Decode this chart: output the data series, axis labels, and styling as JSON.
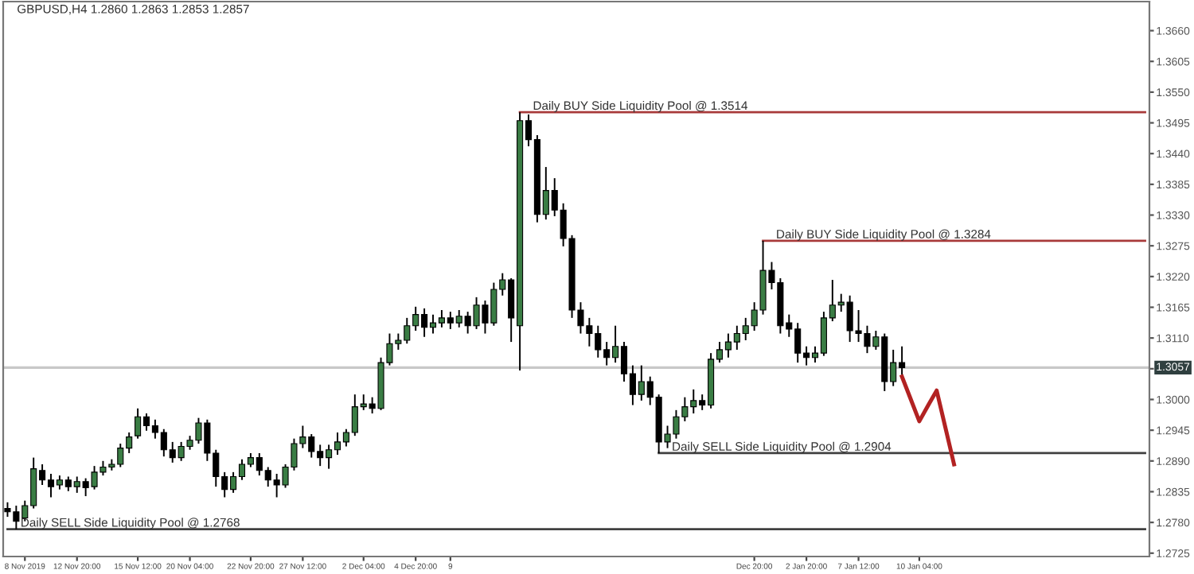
{
  "chart_data": {
    "type": "candlestick",
    "title": "GBPUSD,H4 1.2860 1.2863 1.2853 1.2857",
    "categories": [
      null,
      null,
      "8 Nov 2019",
      null,
      null,
      null,
      null,
      null,
      "12 Nov 20:00",
      null,
      null,
      null,
      null,
      null,
      null,
      "15 Nov 12:00",
      null,
      null,
      null,
      null,
      null,
      "20 Nov 04:00",
      null,
      null,
      null,
      null,
      null,
      null,
      "22 Nov 20:00",
      null,
      null,
      null,
      null,
      null,
      "27 Nov 12:00",
      null,
      null,
      null,
      null,
      null,
      null,
      "2 Dec 04:00",
      null,
      null,
      null,
      null,
      null,
      "4 Dec 20:00",
      null,
      null,
      null,
      "9",
      null,
      null,
      null,
      null,
      null,
      null,
      null,
      null,
      null,
      null,
      null,
      null,
      null,
      null,
      null,
      null,
      null,
      null,
      null,
      null,
      null,
      null,
      null,
      null,
      null,
      null,
      null,
      null,
      null,
      null,
      null,
      null,
      null,
      null,
      "Dec 20:00",
      null,
      null,
      null,
      null,
      null,
      "2 Jan 20:00",
      null,
      null,
      null,
      null,
      null,
      "7 Jan 12:00",
      null,
      null,
      null,
      null,
      null,
      null,
      "10 Jan 04:00",
      null,
      null,
      null,
      null,
      null,
      null,
      null,
      null,
      null,
      null,
      null,
      null,
      null,
      null,
      null,
      null,
      null,
      null,
      null,
      null,
      null,
      null,
      null,
      null,
      null,
      null
    ],
    "ohlc": [
      [
        1.2805,
        1.2816,
        1.279,
        1.2799
      ],
      [
        1.2799,
        1.281,
        1.2768,
        1.2782
      ],
      [
        1.2788,
        1.2819,
        1.2782,
        1.281
      ],
      [
        1.281,
        1.2896,
        1.2805,
        1.2876
      ],
      [
        1.2873,
        1.2884,
        1.2847,
        1.2856
      ],
      [
        1.2856,
        1.2867,
        1.2825,
        1.2844
      ],
      [
        1.2847,
        1.2864,
        1.2839,
        1.2856
      ],
      [
        1.2856,
        1.2862,
        1.2836,
        1.2844
      ],
      [
        1.2844,
        1.2862,
        1.2833,
        1.2853
      ],
      [
        1.2853,
        1.2859,
        1.2827,
        1.2842
      ],
      [
        1.2844,
        1.2881,
        1.2839,
        1.287
      ],
      [
        1.287,
        1.289,
        1.2864,
        1.2879
      ],
      [
        1.2879,
        1.2893,
        1.2873,
        1.2884
      ],
      [
        1.2884,
        1.2921,
        1.2879,
        1.2913
      ],
      [
        1.2913,
        1.2941,
        1.2904,
        1.2933
      ],
      [
        1.2935,
        1.2984,
        1.293,
        1.2969
      ],
      [
        1.2969,
        1.2975,
        1.2944,
        1.2953
      ],
      [
        1.2953,
        1.2964,
        1.293,
        1.2941
      ],
      [
        1.2941,
        1.2947,
        1.2898,
        1.291
      ],
      [
        1.291,
        1.2924,
        1.2887,
        1.2896
      ],
      [
        1.2896,
        1.2924,
        1.289,
        1.2916
      ],
      [
        1.2916,
        1.2935,
        1.291,
        1.2927
      ],
      [
        1.2927,
        1.2967,
        1.2921,
        1.2958
      ],
      [
        1.2958,
        1.2964,
        1.289,
        1.2904
      ],
      [
        1.2904,
        1.291,
        1.2844,
        1.2862
      ],
      [
        1.2862,
        1.287,
        1.2825,
        1.2839
      ],
      [
        1.2839,
        1.287,
        1.2833,
        1.2862
      ],
      [
        1.2862,
        1.2893,
        1.2856,
        1.2884
      ],
      [
        1.2884,
        1.2904,
        1.2879,
        1.2896
      ],
      [
        1.2896,
        1.2904,
        1.2864,
        1.2873
      ],
      [
        1.2873,
        1.2879,
        1.2844,
        1.2856
      ],
      [
        1.2856,
        1.2867,
        1.2825,
        1.2847
      ],
      [
        1.2847,
        1.2884,
        1.2842,
        1.2879
      ],
      [
        1.2879,
        1.293,
        1.2873,
        1.2921
      ],
      [
        1.2921,
        1.2953,
        1.2913,
        1.2933
      ],
      [
        1.2933,
        1.2938,
        1.2896,
        1.2907
      ],
      [
        1.2907,
        1.2919,
        1.2881,
        1.2896
      ],
      [
        1.2896,
        1.2919,
        1.2876,
        1.291
      ],
      [
        1.291,
        1.2941,
        1.2901,
        1.2924
      ],
      [
        1.2924,
        1.2947,
        1.2916,
        1.2941
      ],
      [
        1.2941,
        1.3009,
        1.2935,
        1.2987
      ],
      [
        1.2987,
        1.3009,
        1.2981,
        1.2992
      ],
      [
        1.2992,
        1.3004,
        1.2975,
        1.2984
      ],
      [
        1.2984,
        1.3075,
        1.2981,
        1.3066
      ],
      [
        1.3066,
        1.3118,
        1.3061,
        1.31
      ],
      [
        1.31,
        1.3118,
        1.3089,
        1.3106
      ],
      [
        1.3106,
        1.3146,
        1.31,
        1.3132
      ],
      [
        1.3132,
        1.3166,
        1.3123,
        1.3152
      ],
      [
        1.3152,
        1.3163,
        1.3112,
        1.3129
      ],
      [
        1.3129,
        1.3152,
        1.3118,
        1.3137
      ],
      [
        1.3137,
        1.316,
        1.3129,
        1.3146
      ],
      [
        1.3146,
        1.3157,
        1.3126,
        1.3137
      ],
      [
        1.3137,
        1.316,
        1.3129,
        1.3149
      ],
      [
        1.3149,
        1.3157,
        1.3118,
        1.3132
      ],
      [
        1.3132,
        1.3183,
        1.3126,
        1.3169
      ],
      [
        1.3169,
        1.3177,
        1.3118,
        1.3137
      ],
      [
        1.3137,
        1.3209,
        1.3132,
        1.3197
      ],
      [
        1.3197,
        1.3226,
        1.3186,
        1.3214
      ],
      [
        1.3214,
        1.3217,
        1.3103,
        1.3146
      ],
      [
        1.3132,
        1.3514,
        1.3052,
        1.3499
      ],
      [
        1.3499,
        1.351,
        1.3453,
        1.3465
      ],
      [
        1.3465,
        1.3473,
        1.3317,
        1.3331
      ],
      [
        1.3331,
        1.3416,
        1.3322,
        1.3374
      ],
      [
        1.3374,
        1.3396,
        1.3328,
        1.3339
      ],
      [
        1.3339,
        1.3351,
        1.3274,
        1.3288
      ],
      [
        1.3288,
        1.3294,
        1.3146,
        1.316
      ],
      [
        1.316,
        1.3174,
        1.3118,
        1.3132
      ],
      [
        1.3132,
        1.3146,
        1.3095,
        1.3118
      ],
      [
        1.3118,
        1.3132,
        1.3075,
        1.3089
      ],
      [
        1.3089,
        1.3103,
        1.3061,
        1.3075
      ],
      [
        1.3075,
        1.3132,
        1.3066,
        1.3095
      ],
      [
        1.3095,
        1.3103,
        1.3032,
        1.3046
      ],
      [
        1.3046,
        1.3061,
        1.299,
        1.3009
      ],
      [
        1.3009,
        1.3061,
        1.2998,
        1.3032
      ],
      [
        1.3032,
        1.3041,
        1.299,
        1.3004
      ],
      [
        1.3004,
        1.3009,
        1.2904,
        1.2924
      ],
      [
        1.2924,
        1.2953,
        1.2913,
        1.2938
      ],
      [
        1.2938,
        1.2981,
        1.293,
        1.2969
      ],
      [
        1.2969,
        1.3004,
        1.2961,
        1.2987
      ],
      [
        1.2987,
        1.3018,
        1.2975,
        1.2998
      ],
      [
        1.2998,
        1.3009,
        1.2981,
        1.299
      ],
      [
        1.299,
        1.3083,
        1.2984,
        1.3072
      ],
      [
        1.3072,
        1.3103,
        1.3066,
        1.3089
      ],
      [
        1.3089,
        1.3118,
        1.3075,
        1.3103
      ],
      [
        1.3103,
        1.3132,
        1.3089,
        1.3118
      ],
      [
        1.3118,
        1.3146,
        1.3106,
        1.3132
      ],
      [
        1.3132,
        1.3174,
        1.3123,
        1.316
      ],
      [
        1.316,
        1.3284,
        1.3152,
        1.3231
      ],
      [
        1.3231,
        1.3246,
        1.3197,
        1.3209
      ],
      [
        1.3209,
        1.3217,
        1.3118,
        1.3132
      ],
      [
        1.3137,
        1.3152,
        1.3112,
        1.3126
      ],
      [
        1.3126,
        1.3137,
        1.3066,
        1.3083
      ],
      [
        1.3083,
        1.3095,
        1.3061,
        1.3075
      ],
      [
        1.3075,
        1.3095,
        1.3066,
        1.3083
      ],
      [
        1.3083,
        1.3157,
        1.3078,
        1.3146
      ],
      [
        1.3146,
        1.3214,
        1.314,
        1.3169
      ],
      [
        1.3169,
        1.3189,
        1.3157,
        1.3174
      ],
      [
        1.3174,
        1.3186,
        1.3103,
        1.3123
      ],
      [
        1.3123,
        1.316,
        1.3103,
        1.3118
      ],
      [
        1.3118,
        1.3132,
        1.3083,
        1.3095
      ],
      [
        1.3095,
        1.3123,
        1.3089,
        1.3112
      ],
      [
        1.3112,
        1.3118,
        1.3015,
        1.3032
      ],
      [
        1.3032,
        1.3089,
        1.3024,
        1.3066
      ],
      [
        1.3066,
        1.3095,
        1.3044,
        1.3057
      ],
      null,
      null,
      null,
      null,
      null,
      null,
      null,
      null,
      null,
      null,
      null,
      null,
      null,
      null,
      null,
      null,
      null,
      null,
      null,
      null,
      null,
      null,
      null,
      null,
      null,
      null,
      null,
      null
    ],
    "colors": [
      "#000000",
      "#000000",
      "#3a7d44",
      "#3a7d44",
      "#000000",
      "#000000",
      "#3a7d44",
      "#000000",
      "#3a7d44",
      "#000000",
      "#3a7d44",
      "#3a7d44",
      "#3a7d44",
      "#3a7d44",
      "#3a7d44",
      "#3a7d44",
      "#000000",
      "#000000",
      "#000000",
      "#000000",
      "#3a7d44",
      "#3a7d44",
      "#3a7d44",
      "#000000",
      "#000000",
      "#000000",
      "#3a7d44",
      "#3a7d44",
      "#3a7d44",
      "#000000",
      "#000000",
      "#000000",
      "#3a7d44",
      "#3a7d44",
      "#3a7d44",
      "#000000",
      "#000000",
      "#3a7d44",
      "#3a7d44",
      "#3a7d44",
      "#3a7d44",
      "#3a7d44",
      "#000000",
      "#3a7d44",
      "#3a7d44",
      "#3a7d44",
      "#3a7d44",
      "#3a7d44",
      "#000000",
      "#3a7d44",
      "#3a7d44",
      "#000000",
      "#3a7d44",
      "#000000",
      "#3a7d44",
      "#000000",
      "#3a7d44",
      "#3a7d44",
      "#000000",
      "#3a7d44",
      "#000000",
      "#000000",
      "#3a7d44",
      "#000000",
      "#000000",
      "#000000",
      "#000000",
      "#000000",
      "#000000",
      "#000000",
      "#3a7d44",
      "#000000",
      "#000000",
      "#3a7d44",
      "#000000",
      "#000000",
      "#3a7d44",
      "#3a7d44",
      "#3a7d44",
      "#3a7d44",
      "#000000",
      "#3a7d44",
      "#3a7d44",
      "#3a7d44",
      "#3a7d44",
      "#3a7d44",
      "#3a7d44",
      "#3a7d44",
      "#000000",
      "#000000",
      "#000000",
      "#000000",
      "#000000",
      "#3a7d44",
      "#3a7d44",
      "#3a7d44",
      "#3a7d44",
      "#000000",
      "#000000",
      "#000000",
      "#3a7d44",
      "#000000",
      "#3a7d44",
      "#000000",
      null,
      null,
      null,
      null,
      null,
      null,
      null,
      null,
      null,
      null,
      null,
      null,
      null,
      null,
      null,
      null,
      null,
      null,
      null,
      null,
      null,
      null,
      null,
      null,
      null,
      null,
      null,
      null
    ],
    "series": [
      {
        "type": "line",
        "name": "Daily BUY Side Liquidity Pool @ 1.3514",
        "color": "#a83a3a",
        "values": [
          null,
          null,
          null,
          null,
          null,
          null,
          null,
          null,
          null,
          null,
          null,
          null,
          null,
          null,
          null,
          null,
          null,
          null,
          null,
          null,
          null,
          null,
          null,
          null,
          null,
          null,
          null,
          null,
          null,
          null,
          null,
          null,
          null,
          null,
          null,
          null,
          null,
          null,
          null,
          null,
          null,
          null,
          null,
          null,
          null,
          null,
          null,
          null,
          null,
          null,
          null,
          null,
          null,
          null,
          null,
          null,
          null,
          null,
          null,
          1.3514,
          1.3514,
          1.3514,
          1.3514,
          1.3514,
          1.3514,
          1.3514,
          1.3514,
          1.3514,
          1.3514,
          1.3514,
          1.3514,
          1.3514,
          1.3514,
          1.3514,
          1.3514,
          1.3514,
          1.3514,
          1.3514,
          1.3514,
          1.3514,
          1.3514,
          1.3514,
          1.3514,
          1.3514,
          1.3514,
          1.3514,
          1.3514,
          1.3514,
          1.3514,
          1.3514,
          1.3514,
          1.3514,
          1.3514,
          1.3514,
          1.3514,
          1.3514,
          1.3514,
          1.3514,
          1.3514,
          1.3514,
          1.3514,
          1.3514,
          1.3514,
          1.3514,
          1.3514,
          1.3514,
          1.3514,
          1.3514,
          1.3514,
          1.3514,
          1.3514,
          1.3514,
          1.3514,
          1.3514,
          1.3514,
          1.3514,
          1.3514,
          1.3514,
          1.3514,
          1.3514,
          1.3514,
          1.3514,
          1.3514,
          1.3514,
          1.3514,
          1.3514,
          1.3514,
          1.3514,
          1.3514,
          1.3514,
          1.3514,
          1.3514
        ]
      },
      {
        "type": "line",
        "name": "Daily BUY Side Liquidity Pool @ 1.3284",
        "color": "#a83a3a",
        "values": [
          null,
          null,
          null,
          null,
          null,
          null,
          null,
          null,
          null,
          null,
          null,
          null,
          null,
          null,
          null,
          null,
          null,
          null,
          null,
          null,
          null,
          null,
          null,
          null,
          null,
          null,
          null,
          null,
          null,
          null,
          null,
          null,
          null,
          null,
          null,
          null,
          null,
          null,
          null,
          null,
          null,
          null,
          null,
          null,
          null,
          null,
          null,
          null,
          null,
          null,
          null,
          null,
          null,
          null,
          null,
          null,
          null,
          null,
          null,
          null,
          null,
          null,
          null,
          null,
          null,
          null,
          null,
          null,
          null,
          null,
          null,
          null,
          null,
          null,
          null,
          null,
          null,
          null,
          null,
          null,
          null,
          null,
          null,
          null,
          null,
          null,
          null,
          1.3284,
          1.3284,
          1.3284,
          1.3284,
          1.3284,
          1.3284,
          1.3284,
          1.3284,
          1.3284,
          1.3284,
          1.3284,
          1.3284,
          1.3284,
          1.3284,
          1.3284,
          1.3284,
          1.3284,
          1.3284,
          1.3284,
          1.3284,
          1.3284,
          1.3284,
          1.3284,
          1.3284,
          1.3284,
          1.3284,
          1.3284,
          1.3284,
          1.3284,
          1.3284,
          1.3284,
          1.3284,
          1.3284,
          1.3284,
          1.3284,
          1.3284,
          1.3284,
          1.3284,
          1.3284,
          1.3284,
          1.3284,
          1.3284,
          1.3284,
          1.3284,
          1.3284
        ]
      },
      {
        "type": "line",
        "name": "Daily SELL Side Liquidity Pool @ 1.2904",
        "color": "#404040",
        "values": [
          null,
          null,
          null,
          null,
          null,
          null,
          null,
          null,
          null,
          null,
          null,
          null,
          null,
          null,
          null,
          null,
          null,
          null,
          null,
          null,
          null,
          null,
          null,
          null,
          null,
          null,
          null,
          null,
          null,
          null,
          null,
          null,
          null,
          null,
          null,
          null,
          null,
          null,
          null,
          null,
          null,
          null,
          null,
          null,
          null,
          null,
          null,
          null,
          null,
          null,
          null,
          null,
          null,
          null,
          null,
          null,
          null,
          null,
          null,
          null,
          null,
          null,
          null,
          null,
          null,
          null,
          null,
          null,
          null,
          null,
          null,
          null,
          null,
          null,
          null,
          1.2904,
          1.2904,
          1.2904,
          1.2904,
          1.2904,
          1.2904,
          1.2904,
          1.2904,
          1.2904,
          1.2904,
          1.2904,
          1.2904,
          1.2904,
          1.2904,
          1.2904,
          1.2904,
          1.2904,
          1.2904,
          1.2904,
          1.2904,
          1.2904,
          1.2904,
          1.2904,
          1.2904,
          1.2904,
          1.2904,
          1.2904,
          1.2904,
          1.2904,
          1.2904,
          1.2904,
          1.2904,
          1.2904,
          1.2904,
          1.2904,
          1.2904,
          1.2904,
          1.2904,
          1.2904,
          1.2904,
          1.2904,
          1.2904,
          1.2904,
          1.2904,
          1.2904,
          1.2904,
          1.2904,
          1.2904,
          1.2904,
          1.2904,
          1.2904,
          1.2904,
          1.2904,
          1.2904,
          1.2904,
          1.2904,
          1.2904
        ]
      },
      {
        "type": "line",
        "name": "Daily SELL Side Liquidity Pool @ 1.2768",
        "color": "#404040",
        "values": [
          1.2768,
          1.2768,
          1.2768,
          1.2768,
          1.2768,
          1.2768,
          1.2768,
          1.2768,
          1.2768,
          1.2768,
          1.2768,
          1.2768,
          1.2768,
          1.2768,
          1.2768,
          1.2768,
          1.2768,
          1.2768,
          1.2768,
          1.2768,
          1.2768,
          1.2768,
          1.2768,
          1.2768,
          1.2768,
          1.2768,
          1.2768,
          1.2768,
          1.2768,
          1.2768,
          1.2768,
          1.2768,
          1.2768,
          1.2768,
          1.2768,
          1.2768,
          1.2768,
          1.2768,
          1.2768,
          1.2768,
          1.2768,
          1.2768,
          1.2768,
          1.2768,
          1.2768,
          1.2768,
          1.2768,
          1.2768,
          1.2768,
          1.2768,
          1.2768,
          1.2768,
          1.2768,
          1.2768,
          1.2768,
          1.2768,
          1.2768,
          1.2768,
          1.2768,
          1.2768,
          1.2768,
          1.2768,
          1.2768,
          1.2768,
          1.2768,
          1.2768,
          1.2768,
          1.2768,
          1.2768,
          1.2768,
          1.2768,
          1.2768,
          1.2768,
          1.2768,
          1.2768,
          1.2768,
          1.2768,
          1.2768,
          1.2768,
          1.2768,
          1.2768,
          1.2768,
          1.2768,
          1.2768,
          1.2768,
          1.2768,
          1.2768,
          1.2768,
          1.2768,
          1.2768,
          1.2768,
          1.2768,
          1.2768,
          1.2768,
          1.2768,
          1.2768,
          1.2768,
          1.2768,
          1.2768,
          1.2768,
          1.2768,
          1.2768,
          1.2768,
          1.2768,
          1.2768,
          1.2768,
          1.2768,
          1.2768,
          1.2768,
          1.2768,
          1.2768,
          1.2768,
          1.2768,
          1.2768,
          1.2768,
          1.2768,
          1.2768,
          1.2768,
          1.2768,
          1.2768,
          1.2768,
          1.2768,
          1.2768,
          1.2768,
          1.2768,
          1.2768,
          1.2768,
          1.2768,
          1.2768,
          1.2768,
          1.2768,
          1.2768
        ]
      },
      {
        "type": "line",
        "color": "#b22222",
        "values": [
          null,
          null,
          null,
          null,
          null,
          null,
          null,
          null,
          null,
          null,
          null,
          null,
          null,
          null,
          null,
          null,
          null,
          null,
          null,
          null,
          null,
          null,
          null,
          null,
          null,
          null,
          null,
          null,
          null,
          null,
          null,
          null,
          null,
          null,
          null,
          null,
          null,
          null,
          null,
          null,
          null,
          null,
          null,
          null,
          null,
          null,
          null,
          null,
          null,
          null,
          null,
          null,
          null,
          null,
          null,
          null,
          null,
          null,
          null,
          null,
          null,
          null,
          null,
          null,
          null,
          null,
          null,
          null,
          null,
          null,
          null,
          null,
          null,
          null,
          null,
          null,
          null,
          null,
          null,
          null,
          null,
          null,
          null,
          null,
          null,
          null,
          null,
          null,
          null,
          null,
          null,
          null,
          null,
          null,
          null,
          null,
          null,
          null,
          null,
          null,
          null,
          null,
          null,
          1.3041,
          1.3001,
          1.2961,
          1.2989,
          1.3016,
          1.295,
          1.2884,
          null,
          null,
          null,
          null,
          null,
          null,
          null,
          null,
          null,
          null,
          null,
          null,
          null,
          null,
          null,
          null,
          null,
          null,
          null,
          null,
          null,
          null
        ]
      }
    ],
    "ref_lines": [
      {
        "axis": "y",
        "value": 1.3057,
        "label": "1.3057",
        "color": "#c8c8c8"
      }
    ],
    "ylim": [
      1.2719,
      1.3712
    ],
    "yticks": [
      1.2725,
      {
        "value": 1.278,
        "label": "1.2780"
      },
      1.2835,
      {
        "value": 1.289,
        "label": "1.2890"
      },
      1.2945,
      {
        "value": 1.3,
        "label": "1.3000"
      },
      {
        "value": 1.3055,
        "label": null
      },
      {
        "value": 1.311,
        "label": "1.3110"
      },
      1.3165,
      {
        "value": 1.322,
        "label": "1.3220"
      },
      1.3275,
      {
        "value": 1.333,
        "label": "1.3330"
      },
      1.3385,
      {
        "value": 1.344,
        "label": "1.3440"
      },
      1.3495,
      {
        "value": 1.355,
        "label": "1.3550"
      },
      1.3605,
      {
        "value": 1.366,
        "label": "1.3660"
      }
    ],
    "grid": false,
    "legend": false
  }
}
